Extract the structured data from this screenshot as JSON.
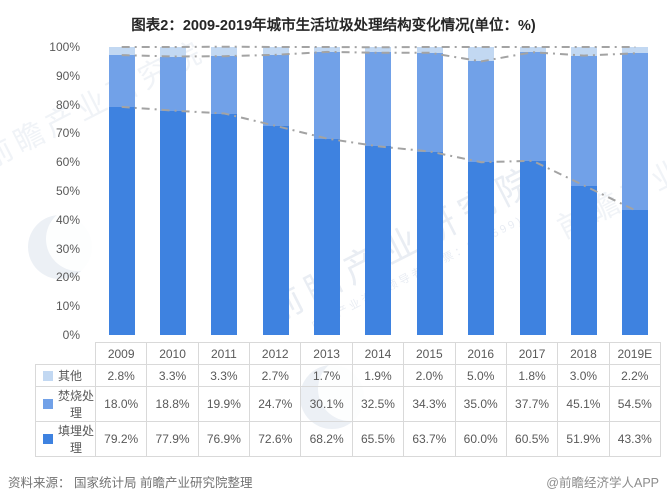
{
  "title": "图表2：2009-2019年城市生活垃圾处理结构变化情况(单位：%)",
  "footer": {
    "source": "资料来源：  国家统计局 前瞻产业研究院整理",
    "credit": "@前瞻经济学人APP"
  },
  "watermark": {
    "text": "前瞻产业研究院",
    "subtext": "中国产业咨询领导者(股票：839599)"
  },
  "colors": {
    "landfill": "#3e82e0",
    "incineration": "#71a1e8",
    "other": "#c2d8f2",
    "trend_line": "#a3a3a3",
    "table_border": "#d9d9d9"
  },
  "chart_data": {
    "type": "bar",
    "stacked": true,
    "title": "图表2：2009-2019年城市生活垃圾处理结构变化情况(单位：%)",
    "categories": [
      "2009",
      "2010",
      "2011",
      "2012",
      "2013",
      "2014",
      "2015",
      "2016",
      "2017",
      "2018",
      "2019E"
    ],
    "series": [
      {
        "name": "其他",
        "color": "#c2d8f2",
        "values": [
          2.8,
          3.3,
          3.3,
          2.7,
          1.7,
          1.9,
          2.0,
          5.0,
          1.8,
          3.0,
          2.2
        ]
      },
      {
        "name": "焚烧处理",
        "color": "#71a1e8",
        "values": [
          18.0,
          18.8,
          19.9,
          24.7,
          30.1,
          32.5,
          34.3,
          35.0,
          37.7,
          45.1,
          54.5
        ]
      },
      {
        "name": "填埋处理",
        "color": "#3e82e0",
        "values": [
          79.2,
          77.9,
          76.9,
          72.6,
          68.2,
          65.5,
          63.7,
          60.0,
          60.5,
          51.9,
          43.3
        ]
      }
    ],
    "overlay_lines": "gray dash-dot lines tracing cumulative stack boundaries (填埋处理 top, 填埋+焚烧 top, 100% total)",
    "y_ticks": [
      "100%",
      "90%",
      "80%",
      "70%",
      "60%",
      "50%",
      "40%",
      "30%",
      "20%",
      "10%",
      "0%"
    ],
    "ylim": [
      0,
      100
    ],
    "grid": false,
    "legend_position": "table-left",
    "unit": "%"
  }
}
